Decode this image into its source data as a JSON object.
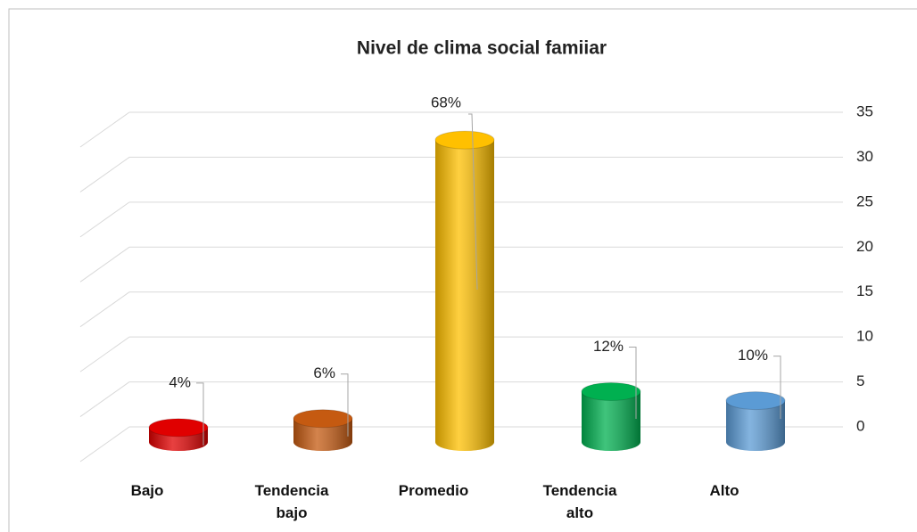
{
  "chart_data": {
    "type": "bar3d",
    "title": "Nivel de clima social famiiar",
    "categories": [
      "Bajo",
      "Tendencia bajo",
      "Promedio",
      "Tendencia alto",
      "Alto"
    ],
    "values": [
      2,
      3,
      34,
      6,
      5
    ],
    "value_labels": [
      "4%",
      "6%",
      "68%",
      "12%",
      "10%"
    ],
    "colors": [
      "#e00000",
      "#c55a11",
      "#ffc000",
      "#00b050",
      "#5b9bd5"
    ],
    "ylim": [
      0,
      35
    ],
    "yticks": [
      0,
      5,
      10,
      15,
      20,
      25,
      30,
      35
    ],
    "grid": true
  }
}
